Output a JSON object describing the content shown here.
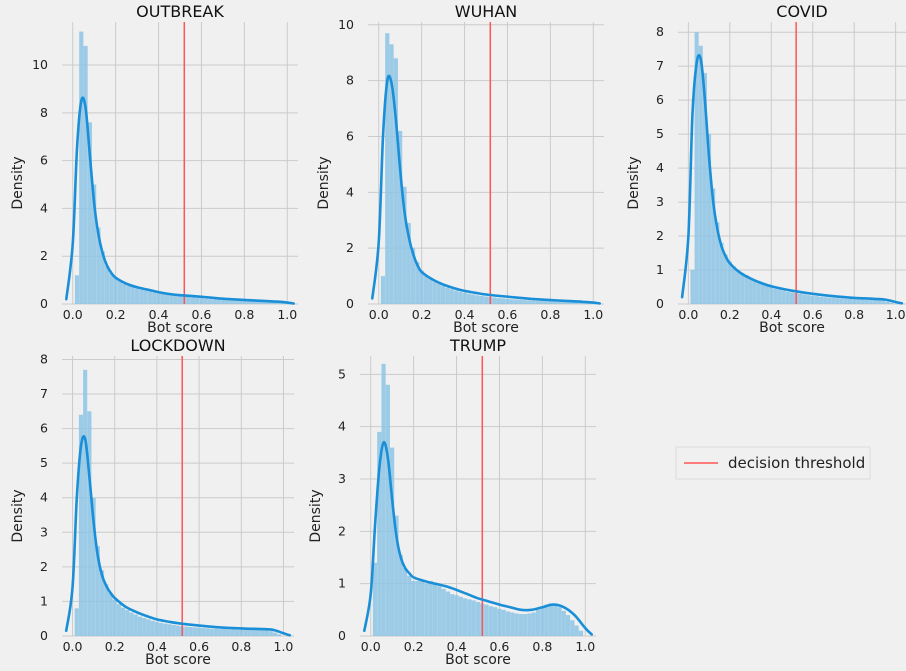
{
  "chart_data": [
    {
      "type": "histogram+kde",
      "title": "OUTBREAK",
      "xlabel": "Bot score",
      "ylabel": "Density",
      "xlim": [
        -0.05,
        1.05
      ],
      "ylim": [
        0,
        11.8
      ],
      "xticks": [
        0.0,
        0.2,
        0.4,
        0.6,
        0.8,
        1.0
      ],
      "yticks": [
        0,
        2,
        4,
        6,
        8,
        10
      ],
      "threshold": 0.52,
      "bins": {
        "x": [
          0.02,
          0.04,
          0.06,
          0.08,
          0.1,
          0.12,
          0.14,
          0.16,
          0.18,
          0.2,
          0.22,
          0.24,
          0.26,
          0.28,
          0.3,
          0.32,
          0.34,
          0.36,
          0.38,
          0.4,
          0.42,
          0.44,
          0.46,
          0.48,
          0.5,
          0.52,
          0.54,
          0.56,
          0.58,
          0.6,
          0.62,
          0.64,
          0.66,
          0.68,
          0.7,
          0.72,
          0.74,
          0.76,
          0.78,
          0.8,
          0.82,
          0.84,
          0.86,
          0.88,
          0.9,
          0.92,
          0.94,
          0.96,
          0.98
        ],
        "values": [
          1.2,
          11.4,
          10.8,
          7.6,
          5.0,
          3.2,
          2.2,
          1.6,
          1.3,
          1.1,
          0.95,
          0.85,
          0.78,
          0.72,
          0.66,
          0.6,
          0.56,
          0.52,
          0.48,
          0.45,
          0.42,
          0.4,
          0.38,
          0.36,
          0.34,
          0.32,
          0.3,
          0.28,
          0.26,
          0.24,
          0.22,
          0.2,
          0.19,
          0.18,
          0.17,
          0.16,
          0.15,
          0.14,
          0.14,
          0.13,
          0.12,
          0.11,
          0.11,
          0.1,
          0.1,
          0.09,
          0.08,
          0.06,
          0.04
        ]
      },
      "kde": {
        "x": [
          -0.03,
          0.0,
          0.02,
          0.04,
          0.06,
          0.08,
          0.1,
          0.12,
          0.14,
          0.16,
          0.18,
          0.2,
          0.25,
          0.3,
          0.35,
          0.4,
          0.45,
          0.5,
          0.6,
          0.7,
          0.8,
          0.9,
          0.95,
          1.0,
          1.03
        ],
        "y": [
          0.2,
          2.5,
          6.5,
          8.5,
          8.2,
          6.2,
          4.2,
          2.9,
          2.1,
          1.6,
          1.3,
          1.1,
          0.85,
          0.7,
          0.6,
          0.5,
          0.42,
          0.37,
          0.3,
          0.22,
          0.17,
          0.12,
          0.1,
          0.06,
          0.02
        ]
      }
    },
    {
      "type": "histogram+kde",
      "title": "WUHAN",
      "xlabel": "Bot score",
      "ylabel": "Density",
      "xlim": [
        -0.05,
        1.05
      ],
      "ylim": [
        0,
        10.1
      ],
      "xticks": [
        0.0,
        0.2,
        0.4,
        0.6,
        0.8,
        1.0
      ],
      "yticks": [
        0,
        2,
        4,
        6,
        8,
        10
      ],
      "threshold": 0.52,
      "bins": {
        "x": [
          0.02,
          0.04,
          0.06,
          0.08,
          0.1,
          0.12,
          0.14,
          0.16,
          0.18,
          0.2,
          0.22,
          0.24,
          0.26,
          0.28,
          0.3,
          0.32,
          0.34,
          0.36,
          0.38,
          0.4,
          0.42,
          0.44,
          0.46,
          0.48,
          0.5,
          0.52,
          0.54,
          0.56,
          0.58,
          0.6,
          0.62,
          0.64,
          0.66,
          0.68,
          0.7,
          0.72,
          0.74,
          0.76,
          0.78,
          0.8,
          0.82,
          0.84,
          0.86,
          0.88,
          0.9,
          0.92,
          0.94,
          0.96,
          0.98
        ],
        "values": [
          1.0,
          9.7,
          9.3,
          8.8,
          6.2,
          4.2,
          2.9,
          2.0,
          1.5,
          1.2,
          1.0,
          0.9,
          0.8,
          0.72,
          0.65,
          0.58,
          0.53,
          0.48,
          0.44,
          0.4,
          0.37,
          0.34,
          0.31,
          0.29,
          0.27,
          0.25,
          0.23,
          0.21,
          0.2,
          0.18,
          0.17,
          0.16,
          0.15,
          0.14,
          0.13,
          0.12,
          0.11,
          0.11,
          0.1,
          0.09,
          0.09,
          0.08,
          0.08,
          0.07,
          0.07,
          0.06,
          0.05,
          0.04,
          0.03
        ]
      },
      "kde": {
        "x": [
          -0.03,
          0.0,
          0.02,
          0.04,
          0.06,
          0.08,
          0.1,
          0.12,
          0.14,
          0.16,
          0.18,
          0.2,
          0.25,
          0.3,
          0.35,
          0.4,
          0.45,
          0.5,
          0.6,
          0.7,
          0.8,
          0.9,
          0.95,
          1.0,
          1.03
        ],
        "y": [
          0.2,
          2.2,
          6.0,
          8.0,
          7.9,
          6.6,
          4.8,
          3.3,
          2.4,
          1.8,
          1.4,
          1.15,
          0.88,
          0.7,
          0.57,
          0.47,
          0.4,
          0.34,
          0.26,
          0.19,
          0.14,
          0.1,
          0.08,
          0.05,
          0.02
        ]
      }
    },
    {
      "type": "histogram+kde",
      "title": "COVID",
      "xlabel": "Bot score",
      "ylabel": "Density",
      "xlim": [
        -0.05,
        1.05
      ],
      "ylim": [
        0,
        8.3
      ],
      "xticks": [
        0.0,
        0.2,
        0.4,
        0.6,
        0.8,
        1.0
      ],
      "yticks": [
        0,
        1,
        2,
        3,
        4,
        5,
        6,
        7,
        8
      ],
      "threshold": 0.52,
      "bins": {
        "x": [
          0.02,
          0.04,
          0.06,
          0.08,
          0.1,
          0.12,
          0.14,
          0.16,
          0.18,
          0.2,
          0.22,
          0.24,
          0.26,
          0.28,
          0.3,
          0.32,
          0.34,
          0.36,
          0.38,
          0.4,
          0.42,
          0.44,
          0.46,
          0.48,
          0.5,
          0.52,
          0.54,
          0.56,
          0.58,
          0.6,
          0.62,
          0.64,
          0.66,
          0.68,
          0.7,
          0.72,
          0.74,
          0.76,
          0.78,
          0.8,
          0.82,
          0.84,
          0.86,
          0.88,
          0.9,
          0.92,
          0.94,
          0.96,
          0.98
        ],
        "values": [
          1.0,
          8.0,
          7.6,
          6.8,
          5.0,
          3.4,
          2.4,
          1.8,
          1.45,
          1.25,
          1.1,
          1.0,
          0.92,
          0.85,
          0.78,
          0.7,
          0.64,
          0.58,
          0.53,
          0.49,
          0.45,
          0.42,
          0.39,
          0.36,
          0.34,
          0.32,
          0.3,
          0.28,
          0.26,
          0.24,
          0.23,
          0.21,
          0.2,
          0.19,
          0.18,
          0.17,
          0.16,
          0.15,
          0.15,
          0.14,
          0.13,
          0.13,
          0.12,
          0.12,
          0.13,
          0.12,
          0.1,
          0.07,
          0.04
        ]
      },
      "kde": {
        "x": [
          -0.03,
          0.0,
          0.02,
          0.04,
          0.06,
          0.08,
          0.1,
          0.12,
          0.14,
          0.16,
          0.18,
          0.2,
          0.25,
          0.3,
          0.35,
          0.4,
          0.45,
          0.5,
          0.6,
          0.7,
          0.8,
          0.9,
          0.95,
          1.0,
          1.03
        ],
        "y": [
          0.2,
          2.0,
          5.6,
          7.1,
          7.2,
          6.0,
          4.3,
          3.0,
          2.2,
          1.7,
          1.4,
          1.2,
          0.92,
          0.75,
          0.62,
          0.52,
          0.45,
          0.39,
          0.3,
          0.23,
          0.18,
          0.15,
          0.13,
          0.06,
          0.02
        ]
      }
    },
    {
      "type": "histogram+kde",
      "title": "LOCKDOWN",
      "xlabel": "Bot score",
      "ylabel": "Density",
      "xlim": [
        -0.05,
        1.05
      ],
      "ylim": [
        0,
        8.1
      ],
      "xticks": [
        0.0,
        0.2,
        0.4,
        0.6,
        0.8,
        1.0
      ],
      "yticks": [
        0,
        1,
        2,
        3,
        4,
        5,
        6,
        7,
        8
      ],
      "threshold": 0.52,
      "bins": {
        "x": [
          0.02,
          0.04,
          0.06,
          0.08,
          0.1,
          0.12,
          0.14,
          0.16,
          0.18,
          0.2,
          0.22,
          0.24,
          0.26,
          0.28,
          0.3,
          0.32,
          0.34,
          0.36,
          0.38,
          0.4,
          0.42,
          0.44,
          0.46,
          0.48,
          0.5,
          0.52,
          0.54,
          0.56,
          0.58,
          0.6,
          0.62,
          0.64,
          0.66,
          0.68,
          0.7,
          0.72,
          0.74,
          0.76,
          0.78,
          0.8,
          0.82,
          0.84,
          0.86,
          0.88,
          0.9,
          0.92,
          0.94,
          0.96,
          0.98
        ],
        "values": [
          0.8,
          6.4,
          7.7,
          6.5,
          4.0,
          2.6,
          1.9,
          1.5,
          1.25,
          1.05,
          0.92,
          0.82,
          0.75,
          0.68,
          0.62,
          0.56,
          0.52,
          0.48,
          0.44,
          0.41,
          0.38,
          0.36,
          0.34,
          0.32,
          0.3,
          0.28,
          0.27,
          0.26,
          0.25,
          0.24,
          0.23,
          0.22,
          0.21,
          0.21,
          0.2,
          0.2,
          0.19,
          0.19,
          0.18,
          0.18,
          0.18,
          0.18,
          0.19,
          0.19,
          0.18,
          0.17,
          0.14,
          0.1,
          0.05
        ]
      },
      "kde": {
        "x": [
          -0.03,
          0.0,
          0.02,
          0.04,
          0.06,
          0.08,
          0.1,
          0.12,
          0.14,
          0.16,
          0.18,
          0.2,
          0.25,
          0.3,
          0.35,
          0.4,
          0.45,
          0.5,
          0.6,
          0.7,
          0.8,
          0.9,
          0.95,
          1.0,
          1.03
        ],
        "y": [
          0.15,
          1.4,
          4.0,
          5.5,
          5.7,
          4.6,
          3.3,
          2.3,
          1.75,
          1.45,
          1.25,
          1.1,
          0.85,
          0.7,
          0.58,
          0.48,
          0.42,
          0.37,
          0.3,
          0.25,
          0.22,
          0.2,
          0.18,
          0.08,
          0.02
        ]
      }
    },
    {
      "type": "histogram+kde",
      "title": "TRUMP",
      "xlabel": "Bot score",
      "ylabel": "Density",
      "xlim": [
        -0.05,
        1.05
      ],
      "ylim": [
        0,
        5.35
      ],
      "xticks": [
        0.0,
        0.2,
        0.4,
        0.6,
        0.8,
        1.0
      ],
      "yticks": [
        0,
        1,
        2,
        3,
        4,
        5
      ],
      "threshold": 0.52,
      "bins": {
        "x": [
          0.02,
          0.04,
          0.06,
          0.08,
          0.1,
          0.12,
          0.14,
          0.16,
          0.18,
          0.2,
          0.22,
          0.24,
          0.26,
          0.28,
          0.3,
          0.32,
          0.34,
          0.36,
          0.38,
          0.4,
          0.42,
          0.44,
          0.46,
          0.48,
          0.5,
          0.52,
          0.54,
          0.56,
          0.58,
          0.6,
          0.62,
          0.64,
          0.66,
          0.68,
          0.7,
          0.72,
          0.74,
          0.76,
          0.78,
          0.8,
          0.82,
          0.84,
          0.86,
          0.88,
          0.9,
          0.92,
          0.94,
          0.96,
          0.98
        ],
        "values": [
          1.4,
          3.9,
          5.2,
          4.8,
          3.6,
          2.3,
          1.55,
          1.3,
          1.15,
          1.05,
          1.05,
          1.05,
          1.0,
          1.05,
          1.0,
          0.95,
          0.9,
          0.85,
          0.8,
          0.78,
          0.75,
          0.72,
          0.7,
          0.68,
          0.65,
          0.62,
          0.6,
          0.57,
          0.55,
          0.52,
          0.5,
          0.47,
          0.45,
          0.43,
          0.42,
          0.42,
          0.43,
          0.45,
          0.5,
          0.55,
          0.6,
          0.62,
          0.6,
          0.55,
          0.48,
          0.4,
          0.3,
          0.2,
          0.1
        ]
      },
      "kde": {
        "x": [
          -0.03,
          0.0,
          0.02,
          0.04,
          0.06,
          0.08,
          0.1,
          0.12,
          0.14,
          0.16,
          0.18,
          0.2,
          0.25,
          0.3,
          0.35,
          0.4,
          0.45,
          0.5,
          0.55,
          0.6,
          0.65,
          0.7,
          0.75,
          0.8,
          0.85,
          0.9,
          0.95,
          1.0,
          1.03
        ],
        "y": [
          0.1,
          0.8,
          2.1,
          3.2,
          3.7,
          3.4,
          2.6,
          1.9,
          1.5,
          1.3,
          1.2,
          1.12,
          1.05,
          1.0,
          0.95,
          0.88,
          0.8,
          0.72,
          0.66,
          0.6,
          0.55,
          0.5,
          0.5,
          0.55,
          0.6,
          0.55,
          0.4,
          0.15,
          0.03
        ]
      }
    }
  ],
  "legend": {
    "label": "decision threshold",
    "color": "#ff6b6b",
    "placement": "right"
  },
  "colors": {
    "kde": "#1a8fd8",
    "bars": "#8cc4e4",
    "threshold": "#ff5555",
    "grid": "#cbcbcb",
    "background": "#f0f0f0"
  }
}
